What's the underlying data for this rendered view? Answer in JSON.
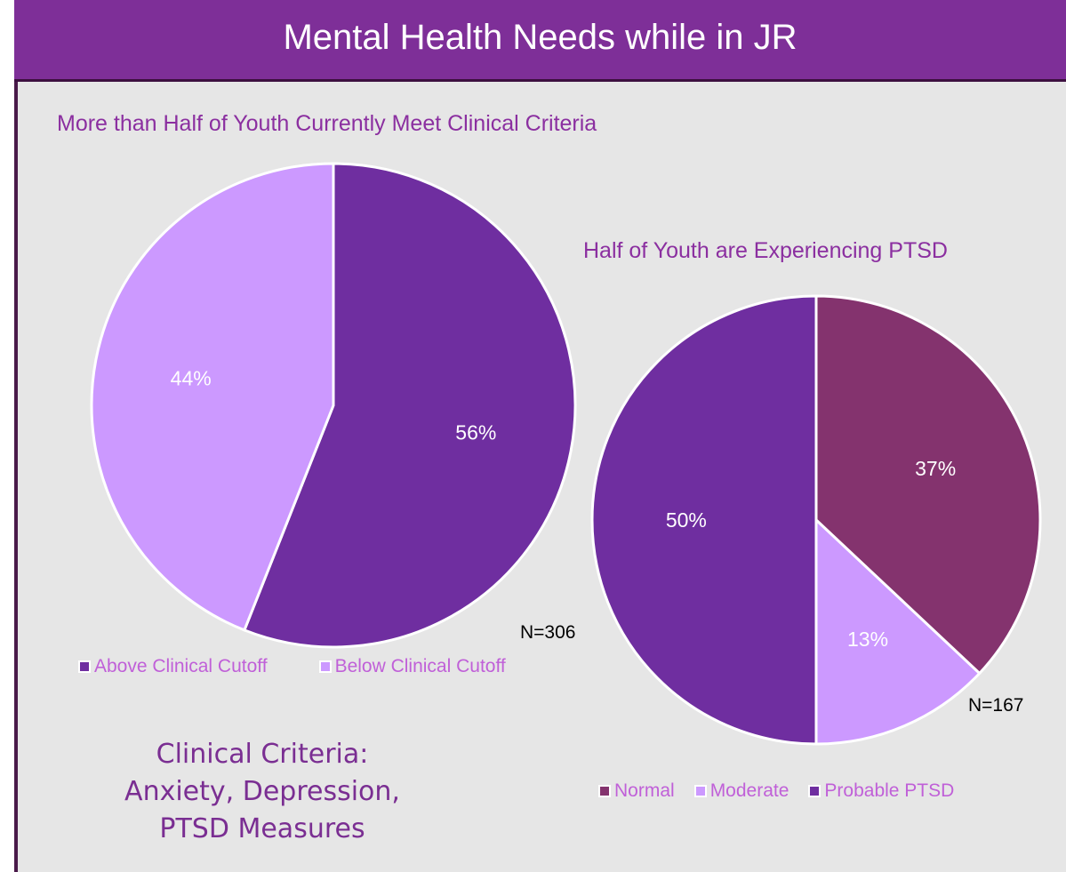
{
  "header": {
    "title": "Mental Health Needs while in JR"
  },
  "chart_data": [
    {
      "type": "pie",
      "title": "More than Half of Youth Currently Meet Clinical Criteria",
      "categories": [
        "Above Clinical Cutoff",
        "Below Clinical Cutoff"
      ],
      "values": [
        56,
        44
      ],
      "labels": [
        "56%",
        "44%"
      ],
      "colors": [
        "#6f2ea0",
        "#cc99ff"
      ],
      "n_label": "N=306",
      "legend": "bottom"
    },
    {
      "type": "pie",
      "title": "Half of Youth are Experiencing PTSD",
      "categories": [
        "Normal",
        "Moderate",
        "Probable PTSD"
      ],
      "values": [
        37,
        13,
        50
      ],
      "labels": [
        "37%",
        "13%",
        "50%"
      ],
      "colors": [
        "#84336e",
        "#cc99ff",
        "#6f2ea0"
      ],
      "n_label": "N=167",
      "legend": "bottom"
    }
  ],
  "note": {
    "lines": [
      "Clinical Criteria:",
      "Anxiety, Depression,",
      "PTSD Measures"
    ]
  }
}
